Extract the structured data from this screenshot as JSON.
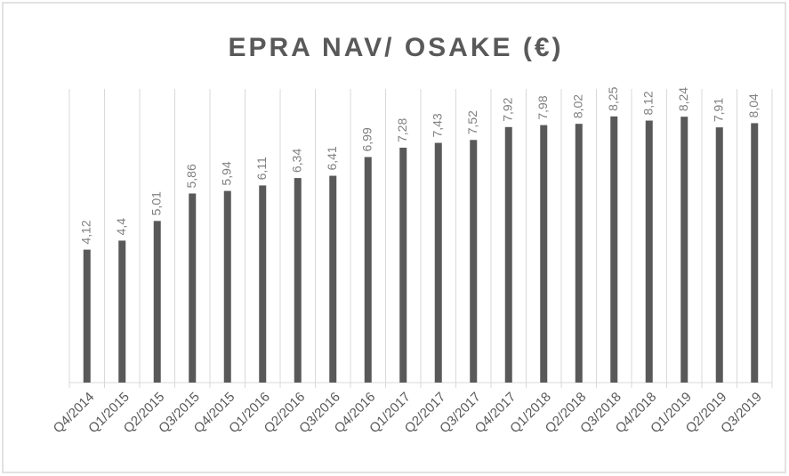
{
  "chart_data": {
    "type": "bar",
    "title": "EPRA NAV/ OSAKE (€)",
    "categories": [
      "Q4/2014",
      "Q1/2015",
      "Q2/2015",
      "Q3/2015",
      "Q4/2015",
      "Q1/2016",
      "Q2/2016",
      "Q3/2016",
      "Q4/2016",
      "Q1/2017",
      "Q2/2017",
      "Q3/2017",
      "Q4/2017",
      "Q1/2018",
      "Q2/2018",
      "Q3/2018",
      "Q4/2018",
      "Q1/2019",
      "Q2/2019",
      "Q3/2019"
    ],
    "values": [
      4.12,
      4.4,
      5.01,
      5.86,
      5.94,
      6.11,
      6.34,
      6.41,
      6.99,
      7.28,
      7.43,
      7.52,
      7.92,
      7.98,
      8.02,
      8.25,
      8.12,
      8.24,
      7.91,
      8.04
    ],
    "value_labels": [
      "4,12",
      "4,4",
      "5,01",
      "5,86",
      "5,94",
      "6,11",
      "6,34",
      "6,41",
      "6,99",
      "7,28",
      "7,43",
      "7,52",
      "7,92",
      "7,98",
      "8,02",
      "8,25",
      "8,12",
      "8,24",
      "7,91",
      "8,04"
    ],
    "color": "#595959",
    "ylim": [
      0,
      9.1
    ]
  }
}
